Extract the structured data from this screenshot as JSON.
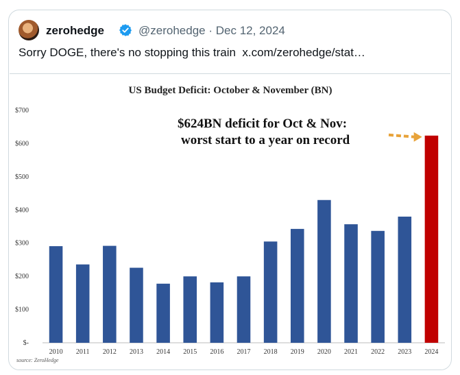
{
  "tweet": {
    "author_name": "zerohedge",
    "handle": "@zerohedge",
    "separator": "·",
    "date": "Dec 12, 2024",
    "text": "Sorry DOGE, there's no stopping this train  x.com/zerohedge/stat…",
    "verified_icon": "verified-badge-icon",
    "avatar_icon": "profile-avatar"
  },
  "chart_data": {
    "type": "bar",
    "title": "US Budget Deficit: October & November (BN)",
    "categories": [
      "2010",
      "2011",
      "2012",
      "2013",
      "2014",
      "2015",
      "2016",
      "2017",
      "2018",
      "2019",
      "2020",
      "2021",
      "2022",
      "2023",
      "2024"
    ],
    "values": [
      291,
      236,
      292,
      226,
      178,
      200,
      182,
      200,
      305,
      343,
      430,
      357,
      337,
      380,
      624
    ],
    "ylim": [
      0,
      700
    ],
    "ytick_values": [
      0,
      100,
      200,
      300,
      400,
      500,
      600,
      700
    ],
    "ytick_labels": [
      "$-",
      "$100",
      "$200",
      "$300",
      "$400",
      "$500",
      "$600",
      "$700"
    ],
    "grid": false,
    "bar_color": "#2f5597",
    "highlight_color": "#c00000",
    "highlight_index": 14,
    "annotation_line1": "$624BN deficit for Oct & Nov:",
    "annotation_line2": "worst start to a year on record",
    "arrow_color": "#e8a33a",
    "source": "source: ZeroHedge"
  }
}
